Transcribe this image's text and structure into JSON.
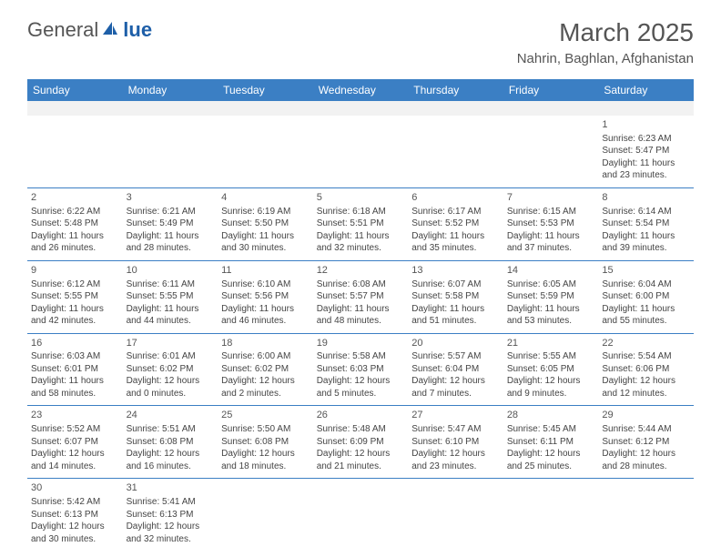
{
  "logo": {
    "prefix": "General",
    "suffix": "lue"
  },
  "header": {
    "month": "March 2025",
    "location": "Nahrin, Baghlan, Afghanistan"
  },
  "weekdays": [
    "Sunday",
    "Monday",
    "Tuesday",
    "Wednesday",
    "Thursday",
    "Friday",
    "Saturday"
  ],
  "colors": {
    "header_bg": "#3b7fc4",
    "header_text": "#ffffff",
    "border": "#3b7fc4",
    "spacer_bg": "#f2f2f2"
  },
  "grid": [
    [
      null,
      null,
      null,
      null,
      null,
      null,
      {
        "d": "1",
        "rise": "Sunrise: 6:23 AM",
        "set": "Sunset: 5:47 PM",
        "dl1": "Daylight: 11 hours",
        "dl2": "and 23 minutes."
      }
    ],
    [
      {
        "d": "2",
        "rise": "Sunrise: 6:22 AM",
        "set": "Sunset: 5:48 PM",
        "dl1": "Daylight: 11 hours",
        "dl2": "and 26 minutes."
      },
      {
        "d": "3",
        "rise": "Sunrise: 6:21 AM",
        "set": "Sunset: 5:49 PM",
        "dl1": "Daylight: 11 hours",
        "dl2": "and 28 minutes."
      },
      {
        "d": "4",
        "rise": "Sunrise: 6:19 AM",
        "set": "Sunset: 5:50 PM",
        "dl1": "Daylight: 11 hours",
        "dl2": "and 30 minutes."
      },
      {
        "d": "5",
        "rise": "Sunrise: 6:18 AM",
        "set": "Sunset: 5:51 PM",
        "dl1": "Daylight: 11 hours",
        "dl2": "and 32 minutes."
      },
      {
        "d": "6",
        "rise": "Sunrise: 6:17 AM",
        "set": "Sunset: 5:52 PM",
        "dl1": "Daylight: 11 hours",
        "dl2": "and 35 minutes."
      },
      {
        "d": "7",
        "rise": "Sunrise: 6:15 AM",
        "set": "Sunset: 5:53 PM",
        "dl1": "Daylight: 11 hours",
        "dl2": "and 37 minutes."
      },
      {
        "d": "8",
        "rise": "Sunrise: 6:14 AM",
        "set": "Sunset: 5:54 PM",
        "dl1": "Daylight: 11 hours",
        "dl2": "and 39 minutes."
      }
    ],
    [
      {
        "d": "9",
        "rise": "Sunrise: 6:12 AM",
        "set": "Sunset: 5:55 PM",
        "dl1": "Daylight: 11 hours",
        "dl2": "and 42 minutes."
      },
      {
        "d": "10",
        "rise": "Sunrise: 6:11 AM",
        "set": "Sunset: 5:55 PM",
        "dl1": "Daylight: 11 hours",
        "dl2": "and 44 minutes."
      },
      {
        "d": "11",
        "rise": "Sunrise: 6:10 AM",
        "set": "Sunset: 5:56 PM",
        "dl1": "Daylight: 11 hours",
        "dl2": "and 46 minutes."
      },
      {
        "d": "12",
        "rise": "Sunrise: 6:08 AM",
        "set": "Sunset: 5:57 PM",
        "dl1": "Daylight: 11 hours",
        "dl2": "and 48 minutes."
      },
      {
        "d": "13",
        "rise": "Sunrise: 6:07 AM",
        "set": "Sunset: 5:58 PM",
        "dl1": "Daylight: 11 hours",
        "dl2": "and 51 minutes."
      },
      {
        "d": "14",
        "rise": "Sunrise: 6:05 AM",
        "set": "Sunset: 5:59 PM",
        "dl1": "Daylight: 11 hours",
        "dl2": "and 53 minutes."
      },
      {
        "d": "15",
        "rise": "Sunrise: 6:04 AM",
        "set": "Sunset: 6:00 PM",
        "dl1": "Daylight: 11 hours",
        "dl2": "and 55 minutes."
      }
    ],
    [
      {
        "d": "16",
        "rise": "Sunrise: 6:03 AM",
        "set": "Sunset: 6:01 PM",
        "dl1": "Daylight: 11 hours",
        "dl2": "and 58 minutes."
      },
      {
        "d": "17",
        "rise": "Sunrise: 6:01 AM",
        "set": "Sunset: 6:02 PM",
        "dl1": "Daylight: 12 hours",
        "dl2": "and 0 minutes."
      },
      {
        "d": "18",
        "rise": "Sunrise: 6:00 AM",
        "set": "Sunset: 6:02 PM",
        "dl1": "Daylight: 12 hours",
        "dl2": "and 2 minutes."
      },
      {
        "d": "19",
        "rise": "Sunrise: 5:58 AM",
        "set": "Sunset: 6:03 PM",
        "dl1": "Daylight: 12 hours",
        "dl2": "and 5 minutes."
      },
      {
        "d": "20",
        "rise": "Sunrise: 5:57 AM",
        "set": "Sunset: 6:04 PM",
        "dl1": "Daylight: 12 hours",
        "dl2": "and 7 minutes."
      },
      {
        "d": "21",
        "rise": "Sunrise: 5:55 AM",
        "set": "Sunset: 6:05 PM",
        "dl1": "Daylight: 12 hours",
        "dl2": "and 9 minutes."
      },
      {
        "d": "22",
        "rise": "Sunrise: 5:54 AM",
        "set": "Sunset: 6:06 PM",
        "dl1": "Daylight: 12 hours",
        "dl2": "and 12 minutes."
      }
    ],
    [
      {
        "d": "23",
        "rise": "Sunrise: 5:52 AM",
        "set": "Sunset: 6:07 PM",
        "dl1": "Daylight: 12 hours",
        "dl2": "and 14 minutes."
      },
      {
        "d": "24",
        "rise": "Sunrise: 5:51 AM",
        "set": "Sunset: 6:08 PM",
        "dl1": "Daylight: 12 hours",
        "dl2": "and 16 minutes."
      },
      {
        "d": "25",
        "rise": "Sunrise: 5:50 AM",
        "set": "Sunset: 6:08 PM",
        "dl1": "Daylight: 12 hours",
        "dl2": "and 18 minutes."
      },
      {
        "d": "26",
        "rise": "Sunrise: 5:48 AM",
        "set": "Sunset: 6:09 PM",
        "dl1": "Daylight: 12 hours",
        "dl2": "and 21 minutes."
      },
      {
        "d": "27",
        "rise": "Sunrise: 5:47 AM",
        "set": "Sunset: 6:10 PM",
        "dl1": "Daylight: 12 hours",
        "dl2": "and 23 minutes."
      },
      {
        "d": "28",
        "rise": "Sunrise: 5:45 AM",
        "set": "Sunset: 6:11 PM",
        "dl1": "Daylight: 12 hours",
        "dl2": "and 25 minutes."
      },
      {
        "d": "29",
        "rise": "Sunrise: 5:44 AM",
        "set": "Sunset: 6:12 PM",
        "dl1": "Daylight: 12 hours",
        "dl2": "and 28 minutes."
      }
    ],
    [
      {
        "d": "30",
        "rise": "Sunrise: 5:42 AM",
        "set": "Sunset: 6:13 PM",
        "dl1": "Daylight: 12 hours",
        "dl2": "and 30 minutes."
      },
      {
        "d": "31",
        "rise": "Sunrise: 5:41 AM",
        "set": "Sunset: 6:13 PM",
        "dl1": "Daylight: 12 hours",
        "dl2": "and 32 minutes."
      },
      null,
      null,
      null,
      null,
      null
    ]
  ]
}
